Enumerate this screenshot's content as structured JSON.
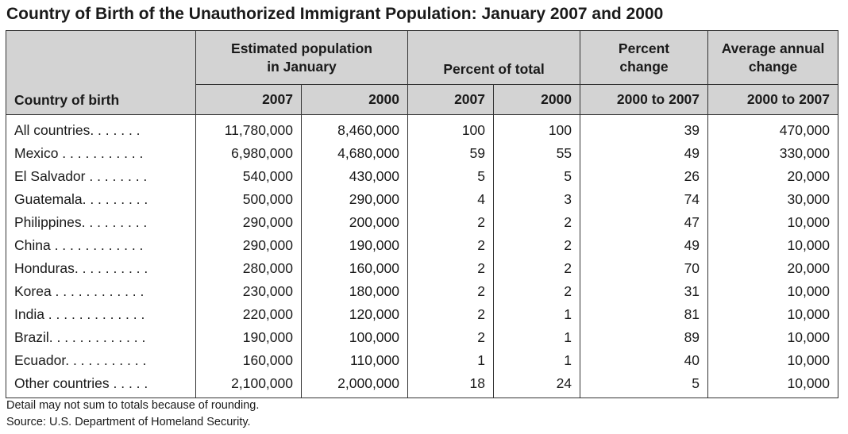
{
  "title": "Country of Birth of the Unauthorized Immigrant Population: January 2007 and 2000",
  "headers": {
    "country": "Country of birth",
    "est_pop": "Estimated population in January",
    "pct_total": "Percent of total",
    "pct_change": "Percent change",
    "avg_change": "Average annual change",
    "col_2007": "2007",
    "col_2000": "2000",
    "col_2000_to_2007": "2000 to 2007"
  },
  "rows": [
    {
      "country": "All countries. . . . . . .",
      "pop_2007": "11,780,000",
      "pop_2000": "8,460,000",
      "pct_2007": "100",
      "pct_2000": "100",
      "pct_change": "39",
      "avg_change": "470,000"
    },
    {
      "country": "Mexico . . . . . . . . . . .",
      "pop_2007": "6,980,000",
      "pop_2000": "4,680,000",
      "pct_2007": "59",
      "pct_2000": "55",
      "pct_change": "49",
      "avg_change": "330,000"
    },
    {
      "country": "El Salvador . . . . . . . .",
      "pop_2007": "540,000",
      "pop_2000": "430,000",
      "pct_2007": "5",
      "pct_2000": "5",
      "pct_change": "26",
      "avg_change": "20,000"
    },
    {
      "country": "Guatemala. . . . . . . . .",
      "pop_2007": "500,000",
      "pop_2000": "290,000",
      "pct_2007": "4",
      "pct_2000": "3",
      "pct_change": "74",
      "avg_change": "30,000"
    },
    {
      "country": "Philippines. . . . . . . . .",
      "pop_2007": "290,000",
      "pop_2000": "200,000",
      "pct_2007": "2",
      "pct_2000": "2",
      "pct_change": "47",
      "avg_change": "10,000"
    },
    {
      "country": "China . . . . . . . . . . . .",
      "pop_2007": "290,000",
      "pop_2000": "190,000",
      "pct_2007": "2",
      "pct_2000": "2",
      "pct_change": "49",
      "avg_change": "10,000"
    },
    {
      "country": "Honduras. . . . . . . . . .",
      "pop_2007": "280,000",
      "pop_2000": "160,000",
      "pct_2007": "2",
      "pct_2000": "2",
      "pct_change": "70",
      "avg_change": "20,000"
    },
    {
      "country": "Korea . . . . . . . . . . . .",
      "pop_2007": "230,000",
      "pop_2000": "180,000",
      "pct_2007": "2",
      "pct_2000": "2",
      "pct_change": "31",
      "avg_change": "10,000"
    },
    {
      "country": "India . . . . . . . . . . . . .",
      "pop_2007": "220,000",
      "pop_2000": "120,000",
      "pct_2007": "2",
      "pct_2000": "1",
      "pct_change": "81",
      "avg_change": "10,000"
    },
    {
      "country": "Brazil. . . . . . . . . . . . .",
      "pop_2007": "190,000",
      "pop_2000": "100,000",
      "pct_2007": "2",
      "pct_2000": "1",
      "pct_change": "89",
      "avg_change": "10,000"
    },
    {
      "country": "Ecuador. . . . . . . . . . .",
      "pop_2007": "160,000",
      "pop_2000": "110,000",
      "pct_2007": "1",
      "pct_2000": "1",
      "pct_change": "40",
      "avg_change": "10,000"
    },
    {
      "country": "Other countries . . . . .",
      "pop_2007": "2,100,000",
      "pop_2000": "2,000,000",
      "pct_2007": "18",
      "pct_2000": "24",
      "pct_change": "5",
      "avg_change": "10,000"
    }
  ],
  "notes": [
    "Detail may not sum to totals because of rounding.",
    "Source: U.S. Department of Homeland Security."
  ]
}
